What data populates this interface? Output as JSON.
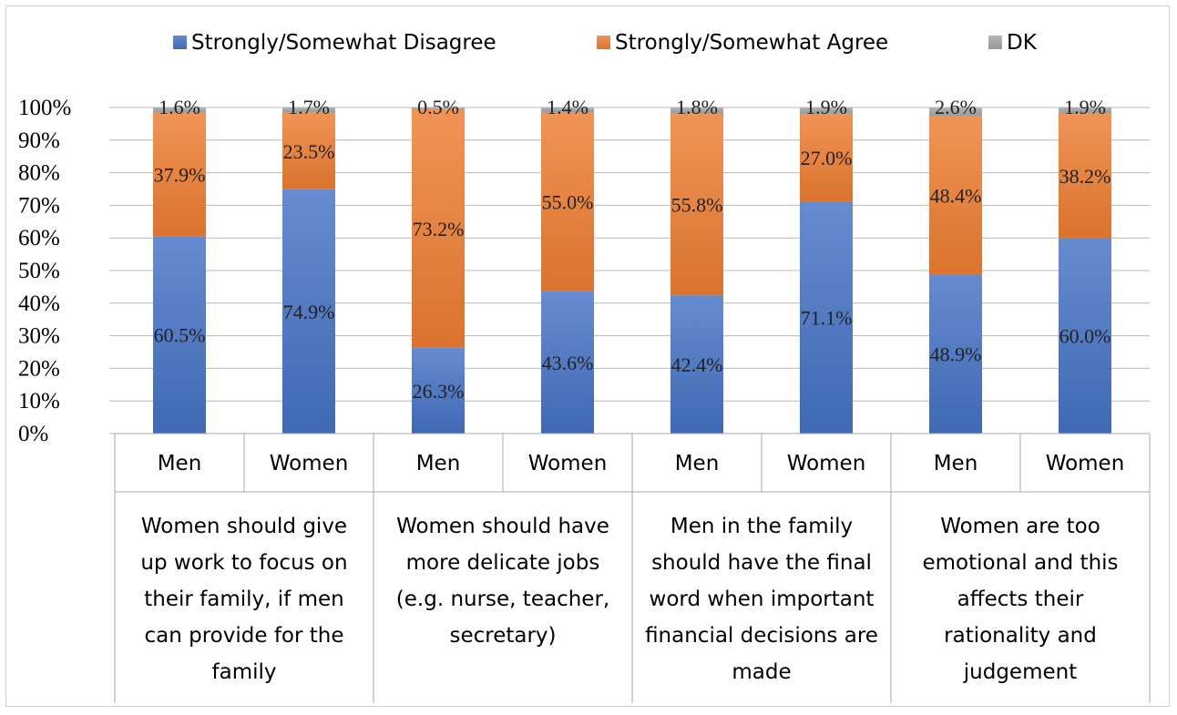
{
  "chart_data": {
    "type": "bar",
    "stacked": true,
    "legend_position": "top",
    "ylim": [
      0,
      100
    ],
    "y_ticks": [
      "0%",
      "10%",
      "20%",
      "30%",
      "40%",
      "50%",
      "60%",
      "70%",
      "80%",
      "90%",
      "100%"
    ],
    "groups": [
      {
        "label": "Women should give up work to focus on their family, if men can provide for the family",
        "label_lines": [
          "Women should give",
          "up work to focus on",
          "their family, if men",
          "can provide for the",
          "family"
        ]
      },
      {
        "label": "Women should have more delicate jobs (e.g. nurse, teacher, secretary)",
        "label_lines": [
          "Women should have",
          "more delicate jobs",
          "(e.g. nurse, teacher,",
          "secretary)"
        ]
      },
      {
        "label": "Men in the family should have the final word when important financial decisions are made",
        "label_lines": [
          "Men in the family",
          "should have the final",
          "word when important",
          "financial decisions are",
          "made"
        ]
      },
      {
        "label": "Women are too emotional and this affects their rationality and judgement",
        "label_lines": [
          "Women are too",
          "emotional and this",
          "affects their",
          "rationality and",
          "judgement"
        ]
      }
    ],
    "categories": [
      "Men",
      "Women",
      "Men",
      "Women",
      "Men",
      "Women",
      "Men",
      "Women"
    ],
    "series": [
      {
        "name": "Strongly/Somewhat Disagree",
        "color": "#4472c4",
        "values": [
          60.5,
          74.9,
          26.3,
          43.6,
          42.4,
          71.1,
          48.9,
          60.0
        ],
        "labels": [
          "60.5%",
          "74.9%",
          "26.3%",
          "43.6%",
          "42.4%",
          "71.1%",
          "48.9%",
          "60.0%"
        ]
      },
      {
        "name": "Strongly/Somewhat Agree",
        "color": "#ed7d31",
        "values": [
          37.9,
          23.5,
          73.2,
          55.0,
          55.8,
          27.0,
          48.4,
          38.2
        ],
        "labels": [
          "37.9%",
          "23.5%",
          "73.2%",
          "55.0%",
          "55.8%",
          "27.0%",
          "48.4%",
          "38.2%"
        ]
      },
      {
        "name": "DK",
        "color": "#a5a5a5",
        "values": [
          1.6,
          1.7,
          0.5,
          1.4,
          1.8,
          1.9,
          2.6,
          1.9
        ],
        "labels": [
          "1.6%",
          "1.7%",
          "0.5%",
          "1.4%",
          "1.8%",
          "1.9%",
          "2.6%",
          "1.9%"
        ]
      }
    ]
  }
}
